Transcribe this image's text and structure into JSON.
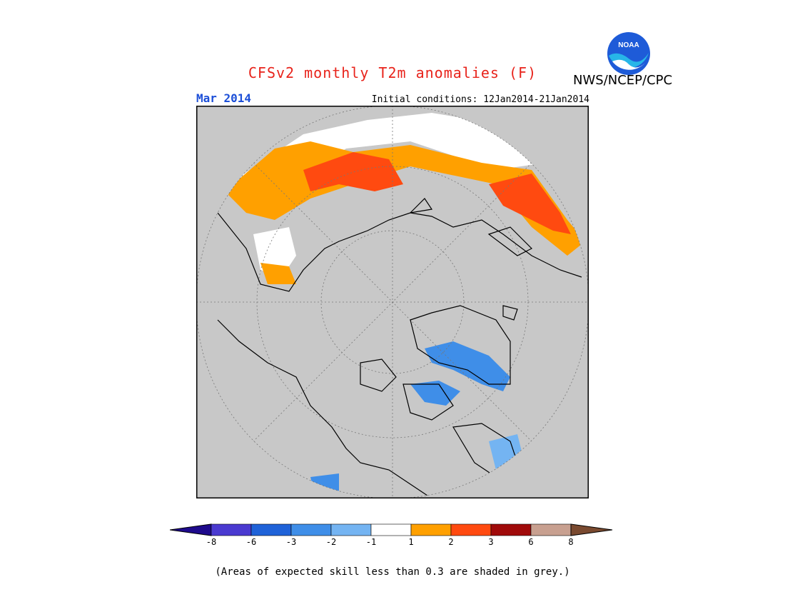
{
  "header": {
    "title": "CFSv2 monthly T2m anomalies (F)",
    "agency": "NWS/NCEP/CPC",
    "logo_text": "NOAA"
  },
  "subheader": {
    "month": "Mar 2014",
    "initial_conditions": "Initial conditions: 12Jan2014-21Jan2014"
  },
  "map": {
    "projection": "north polar stereographic",
    "background_color": "#c8c8c8",
    "coastline_color": "#000000",
    "grid_color": "#777777"
  },
  "legend": {
    "ticks": [
      "-8",
      "-6",
      "-3",
      "-2",
      "-1",
      "1",
      "2",
      "3",
      "6",
      "8"
    ],
    "colors": [
      "#1e0a8c",
      "#4a3ad0",
      "#1f62d8",
      "#3f8ee8",
      "#74b4f2",
      "#ffffff",
      "#ffa000",
      "#ff4a10",
      "#a00a0a",
      "#c8a090",
      "#7a4a30"
    ]
  },
  "footnote": "(Areas of expected skill less than 0.3 are shaded in grey.)"
}
